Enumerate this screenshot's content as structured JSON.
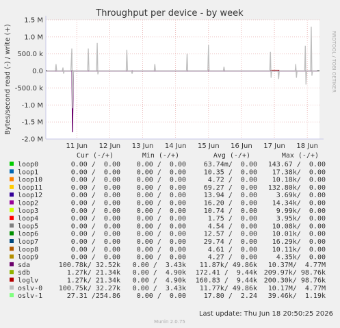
{
  "chart_data": {
    "type": "line",
    "title": "Throughput per device - by week",
    "y_label": "Bytes/second read (-) / write (+)",
    "side_label": "RRDTOOL / TOBI OETIKER",
    "xlim": [
      10.06,
      18.37
    ],
    "xticks": [
      {
        "value": 11,
        "label": "11 Jun"
      },
      {
        "value": 12,
        "label": "12 Jun"
      },
      {
        "value": 13,
        "label": "13 Jun"
      },
      {
        "value": 14,
        "label": "14 Jun"
      },
      {
        "value": 15,
        "label": "15 Jun"
      },
      {
        "value": 16,
        "label": "16 Jun"
      },
      {
        "value": 17,
        "label": "17 Jun"
      },
      {
        "value": 18,
        "label": "18 Jun"
      }
    ],
    "ylim": [
      -2000000,
      1500000
    ],
    "yticks": [
      {
        "value": -2000000,
        "label": "-2.0 M"
      },
      {
        "value": -1500000,
        "label": "-1.5 M"
      },
      {
        "value": -1000000,
        "label": "-1.0 M"
      },
      {
        "value": -500000,
        "label": "-500.0 k"
      },
      {
        "value": 0,
        "label": "0.0"
      },
      {
        "value": 500000,
        "label": "500.0 k"
      },
      {
        "value": 1000000,
        "label": "1.0 M"
      },
      {
        "value": 1500000,
        "label": "1.5 M"
      }
    ],
    "grid": true,
    "x": [
      10.1,
      10.35,
      10.37,
      10.39,
      10.56,
      10.58,
      10.6,
      10.62,
      10.82,
      10.85,
      10.87,
      10.9,
      11.33,
      11.35,
      11.37,
      11.6,
      11.62,
      11.64,
      11.66,
      12.5,
      12.52,
      12.54,
      12.66,
      12.68,
      12.7,
      13.35,
      13.37,
      13.39,
      14.33,
      14.35,
      14.37,
      14.98,
      15.0,
      15.02,
      15.45,
      15.47,
      15.49,
      16.86,
      16.88,
      16.9,
      16.92,
      17.11,
      17.13,
      17.15,
      17.63,
      17.65,
      17.67,
      17.69,
      17.92,
      17.94,
      17.96,
      17.98,
      18.1,
      18.12,
      18.14,
      18.16,
      18.3
    ],
    "columns": [
      "Cur (-/+)",
      "Min (-/+)",
      "Avg (-/+)",
      "Max (-/+)"
    ],
    "series": [
      {
        "name": "loop0",
        "color": "#00cc00",
        "cur": "0.00 /  0.00",
        "min": "0.00 /  0.00",
        "avg": "63.74m/  0.00",
        "max": "143.67 /  0.00"
      },
      {
        "name": "loop1",
        "color": "#0066b3",
        "cur": "0.00 /  0.00",
        "min": "0.00 /  0.00",
        "avg": "10.35 /  0.00",
        "max": "17.38k/  0.00"
      },
      {
        "name": "loop10",
        "color": "#ff8000",
        "cur": "0.00 /  0.00",
        "min": "0.00 /  0.00",
        "avg": "4.72 /  0.00",
        "max": "10.18k/  0.00"
      },
      {
        "name": "loop11",
        "color": "#ffcc00",
        "cur": "0.00 /  0.00",
        "min": "0.00 /  0.00",
        "avg": "69.27 /  0.00",
        "max": "132.80k/  0.00"
      },
      {
        "name": "loop12",
        "color": "#330099",
        "cur": "0.00 /  0.00",
        "min": "0.00 /  0.00",
        "avg": "13.94 /  0.00",
        "max": "3.69k/  0.00"
      },
      {
        "name": "loop2",
        "color": "#990099",
        "cur": "0.00 /  0.00",
        "min": "0.00 /  0.00",
        "avg": "16.20 /  0.00",
        "max": "14.34k/  0.00"
      },
      {
        "name": "loop3",
        "color": "#ccff00",
        "cur": "0.00 /  0.00",
        "min": "0.00 /  0.00",
        "avg": "10.74 /  0.00",
        "max": "9.99k/  0.00"
      },
      {
        "name": "loop4",
        "color": "#ff0000",
        "cur": "0.00 /  0.00",
        "min": "0.00 /  0.00",
        "avg": "1.75 /  0.00",
        "max": "3.95k/  0.00"
      },
      {
        "name": "loop5",
        "color": "#808080",
        "cur": "0.00 /  0.00",
        "min": "0.00 /  0.00",
        "avg": "4.54 /  0.00",
        "max": "10.08k/  0.00"
      },
      {
        "name": "loop6",
        "color": "#008f00",
        "cur": "0.00 /  0.00",
        "min": "0.00 /  0.00",
        "avg": "12.57 /  0.00",
        "max": "10.01k/  0.00"
      },
      {
        "name": "loop7",
        "color": "#00487d",
        "cur": "0.00 /  0.00",
        "min": "0.00 /  0.00",
        "avg": "29.74 /  0.00",
        "max": "16.29k/  0.00"
      },
      {
        "name": "loop8",
        "color": "#b35a00",
        "cur": "0.00 /  0.00",
        "min": "0.00 /  0.00",
        "avg": "4.61 /  0.00",
        "max": "10.11k/  0.00"
      },
      {
        "name": "loop9",
        "color": "#b38f00",
        "cur": "0.00 /  0.00",
        "min": "0.00 /  0.00",
        "avg": "4.27 /  0.00",
        "max": "4.35k/  0.00"
      },
      {
        "name": "sda",
        "color": "#6b006b",
        "cur": "100.78k/ 32.52k",
        "min": "0.00 /  3.43k",
        "avg": "11.87k/ 49.86k",
        "max": "10.37M/  4.77M",
        "values": [
          0,
          0,
          0,
          0,
          0,
          0,
          0,
          0,
          0,
          0,
          -1800000,
          0,
          0,
          0,
          0,
          0,
          0,
          0,
          0,
          0,
          0,
          0,
          0,
          0,
          0,
          0,
          0,
          0,
          0,
          0,
          0,
          0,
          0,
          0,
          0,
          0,
          0,
          0,
          0,
          0,
          0,
          0,
          0,
          0,
          0,
          0,
          0,
          0,
          0,
          0,
          0,
          0,
          0,
          0,
          0,
          0,
          0
        ]
      },
      {
        "name": "sdb",
        "color": "#8fb300",
        "cur": "1.27k/ 21.34k",
        "min": "0.00 /  4.90k",
        "avg": "172.41 /  9.44k",
        "max": "209.97k/ 98.76k"
      },
      {
        "name": "loglv",
        "color": "#b30000",
        "cur": "1.27k/ 21.34k",
        "min": "0.00 /  4.90k",
        "avg": "160.83 /  9.44k",
        "max": "200.30k/ 98.76k",
        "values": [
          null,
          null,
          null,
          null,
          null,
          null,
          null,
          null,
          null,
          null,
          null,
          null,
          null,
          null,
          null,
          null,
          null,
          null,
          null,
          null,
          null,
          null,
          null,
          null,
          null,
          null,
          null,
          null,
          null,
          null,
          null,
          null,
          null,
          null,
          null,
          null,
          null,
          20000,
          20000,
          20000,
          20000,
          20000,
          20000,
          20000,
          null,
          null,
          null,
          null,
          null,
          null,
          null,
          null,
          null,
          null,
          null,
          null,
          null
        ]
      },
      {
        "name": "oslv-0",
        "color": "#bebebe",
        "cur": "100.75k/ 32.27k",
        "min": "0.00 /  3.43k",
        "avg": "11.77k/ 49.86k",
        "max": "10.17M/  4.77M",
        "values": [
          0,
          0,
          200000,
          0,
          0,
          100000,
          -80000,
          0,
          0,
          660000,
          -1100000,
          0,
          0,
          660000,
          0,
          0,
          820000,
          -100000,
          0,
          0,
          620000,
          0,
          0,
          -80000,
          0,
          0,
          200000,
          0,
          0,
          500000,
          0,
          0,
          760000,
          0,
          0,
          120000,
          0,
          0,
          560000,
          -200000,
          0,
          0,
          -240000,
          0,
          0,
          200000,
          -200000,
          0,
          0,
          740000,
          -400000,
          0,
          0,
          1300000,
          -140000,
          0,
          0
        ]
      },
      {
        "name": "oslv-1",
        "color": "#80ff80",
        "cur": "27.31 /254.86",
        "min": "0.00 /  0.00",
        "avg": "17.80 /  2.24",
        "max": "39.46k/  1.19k"
      }
    ],
    "footer": "Last update: Thu Jun 18 20:50:25 2026",
    "version": "Munin 2.0.75"
  }
}
